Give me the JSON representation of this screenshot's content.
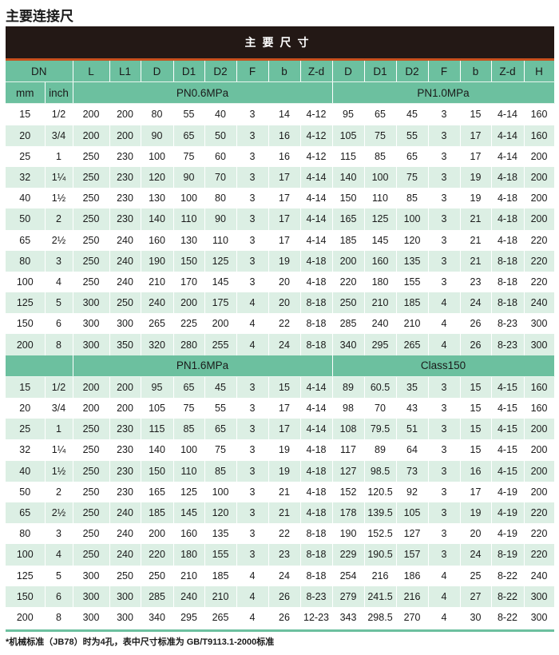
{
  "title": "主要连接尺",
  "banner": "主要尺寸",
  "columns": [
    "DN",
    "L",
    "L1",
    "D",
    "D1",
    "D2",
    "F",
    "b",
    "Z-d",
    "D",
    "D1",
    "D2",
    "F",
    "b",
    "Z-d",
    "H"
  ],
  "sub_header": {
    "mm": "mm",
    "inch": "inch",
    "left": "PN0.6MPa",
    "right": "PN1.0MPa"
  },
  "rows1": [
    [
      "15",
      "1/2",
      "200",
      "200",
      "80",
      "55",
      "40",
      "3",
      "14",
      "4-12",
      "95",
      "65",
      "45",
      "3",
      "15",
      "4-14",
      "160"
    ],
    [
      "20",
      "3/4",
      "200",
      "200",
      "90",
      "65",
      "50",
      "3",
      "16",
      "4-12",
      "105",
      "75",
      "55",
      "3",
      "17",
      "4-14",
      "160"
    ],
    [
      "25",
      "1",
      "250",
      "230",
      "100",
      "75",
      "60",
      "3",
      "16",
      "4-12",
      "115",
      "85",
      "65",
      "3",
      "17",
      "4-14",
      "200"
    ],
    [
      "32",
      "1¼",
      "250",
      "230",
      "120",
      "90",
      "70",
      "3",
      "17",
      "4-14",
      "140",
      "100",
      "75",
      "3",
      "19",
      "4-18",
      "200"
    ],
    [
      "40",
      "1½",
      "250",
      "230",
      "130",
      "100",
      "80",
      "3",
      "17",
      "4-14",
      "150",
      "110",
      "85",
      "3",
      "19",
      "4-18",
      "200"
    ],
    [
      "50",
      "2",
      "250",
      "230",
      "140",
      "110",
      "90",
      "3",
      "17",
      "4-14",
      "165",
      "125",
      "100",
      "3",
      "21",
      "4-18",
      "200"
    ],
    [
      "65",
      "2½",
      "250",
      "240",
      "160",
      "130",
      "110",
      "3",
      "17",
      "4-14",
      "185",
      "145",
      "120",
      "3",
      "21",
      "4-18",
      "220"
    ],
    [
      "80",
      "3",
      "250",
      "240",
      "190",
      "150",
      "125",
      "3",
      "19",
      "4-18",
      "200",
      "160",
      "135",
      "3",
      "21",
      "8-18",
      "220"
    ],
    [
      "100",
      "4",
      "250",
      "240",
      "210",
      "170",
      "145",
      "3",
      "20",
      "4-18",
      "220",
      "180",
      "155",
      "3",
      "23",
      "8-18",
      "220"
    ],
    [
      "125",
      "5",
      "300",
      "250",
      "240",
      "200",
      "175",
      "4",
      "20",
      "8-18",
      "250",
      "210",
      "185",
      "4",
      "24",
      "8-18",
      "240"
    ],
    [
      "150",
      "6",
      "300",
      "300",
      "265",
      "225",
      "200",
      "4",
      "22",
      "8-18",
      "285",
      "240",
      "210",
      "4",
      "26",
      "8-23",
      "300"
    ],
    [
      "200",
      "8",
      "300",
      "350",
      "320",
      "280",
      "255",
      "4",
      "24",
      "8-18",
      "340",
      "295",
      "265",
      "4",
      "26",
      "8-23",
      "300"
    ]
  ],
  "section2": {
    "left": "PN1.6MPa",
    "right": "Class150"
  },
  "rows2": [
    [
      "15",
      "1/2",
      "200",
      "200",
      "95",
      "65",
      "45",
      "3",
      "15",
      "4-14",
      "89",
      "60.5",
      "35",
      "3",
      "15",
      "4-15",
      "160"
    ],
    [
      "20",
      "3/4",
      "200",
      "200",
      "105",
      "75",
      "55",
      "3",
      "17",
      "4-14",
      "98",
      "70",
      "43",
      "3",
      "15",
      "4-15",
      "160"
    ],
    [
      "25",
      "1",
      "250",
      "230",
      "115",
      "85",
      "65",
      "3",
      "17",
      "4-14",
      "108",
      "79.5",
      "51",
      "3",
      "15",
      "4-15",
      "200"
    ],
    [
      "32",
      "1¼",
      "250",
      "230",
      "140",
      "100",
      "75",
      "3",
      "19",
      "4-18",
      "117",
      "89",
      "64",
      "3",
      "15",
      "4-15",
      "200"
    ],
    [
      "40",
      "1½",
      "250",
      "230",
      "150",
      "110",
      "85",
      "3",
      "19",
      "4-18",
      "127",
      "98.5",
      "73",
      "3",
      "16",
      "4-15",
      "200"
    ],
    [
      "50",
      "2",
      "250",
      "230",
      "165",
      "125",
      "100",
      "3",
      "21",
      "4-18",
      "152",
      "120.5",
      "92",
      "3",
      "17",
      "4-19",
      "200"
    ],
    [
      "65",
      "2½",
      "250",
      "240",
      "185",
      "145",
      "120",
      "3",
      "21",
      "4-18",
      "178",
      "139.5",
      "105",
      "3",
      "19",
      "4-19",
      "220"
    ],
    [
      "80",
      "3",
      "250",
      "240",
      "200",
      "160",
      "135",
      "3",
      "22",
      "8-18",
      "190",
      "152.5",
      "127",
      "3",
      "20",
      "4-19",
      "220"
    ],
    [
      "100",
      "4",
      "250",
      "240",
      "220",
      "180",
      "155",
      "3",
      "23",
      "8-18",
      "229",
      "190.5",
      "157",
      "3",
      "24",
      "8-19",
      "220"
    ],
    [
      "125",
      "5",
      "300",
      "250",
      "250",
      "210",
      "185",
      "4",
      "24",
      "8-18",
      "254",
      "216",
      "186",
      "4",
      "25",
      "8-22",
      "240"
    ],
    [
      "150",
      "6",
      "300",
      "300",
      "285",
      "240",
      "210",
      "4",
      "26",
      "8-23",
      "279",
      "241.5",
      "216",
      "4",
      "27",
      "8-22",
      "300"
    ],
    [
      "200",
      "8",
      "300",
      "300",
      "340",
      "295",
      "265",
      "4",
      "26",
      "12-23",
      "343",
      "298.5",
      "270",
      "4",
      "30",
      "8-22",
      "300"
    ]
  ],
  "footnote": "*机械标准（JB78）时为4孔，表中尺寸标准为 GB/T9113.1-2000标准",
  "colors": {
    "header_green": "#6cc09f",
    "row_green": "#dcefe4",
    "banner": "#231815",
    "accent_line": "#c8501e"
  }
}
